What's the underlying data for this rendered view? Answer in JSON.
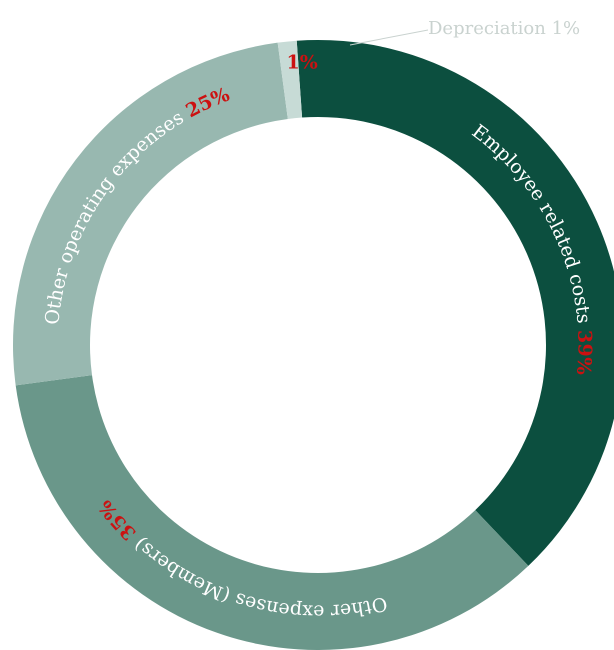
{
  "chart_data": {
    "type": "pie",
    "style": "donut",
    "slices": [
      {
        "label": "Employee related costs",
        "value": 39,
        "percent_text": "39%",
        "color": "#0c4f3f"
      },
      {
        "label": "Other expenses (Members)",
        "value": 35,
        "percent_text": "35%",
        "color": "#6a978a"
      },
      {
        "label": "Other operating expenses",
        "value": 25,
        "percent_text": "25%",
        "color": "#98b8b0"
      },
      {
        "label": "Depreciation",
        "value": 1,
        "percent_text": "1%",
        "color": "#c7dbd6"
      }
    ],
    "callout": {
      "text": "Depreciation 1%"
    },
    "label_color": "#ffffff",
    "percent_color": "#cc1111"
  }
}
